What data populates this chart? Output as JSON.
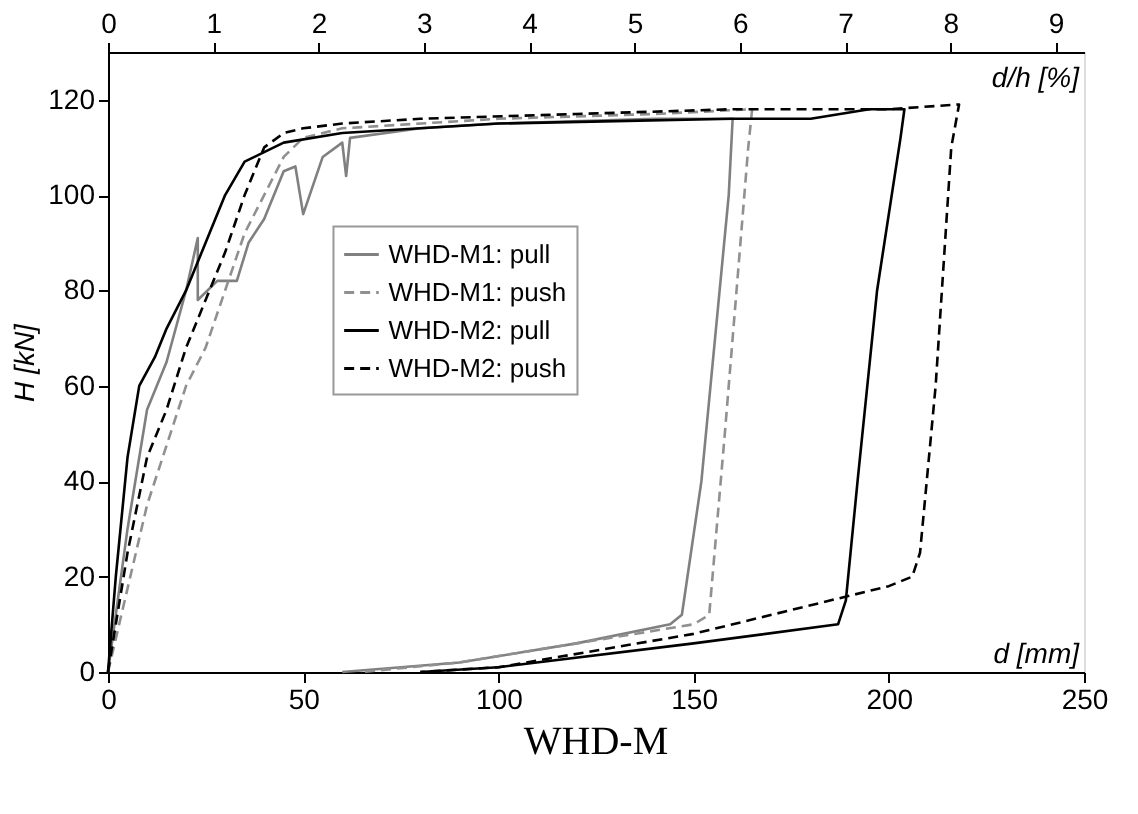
{
  "chart_data": {
    "type": "line",
    "title": "WHD-M",
    "ylabel": "H [kN]",
    "xlabel": "d [mm]",
    "x2label": "d/h [%]",
    "xlim": [
      0,
      250
    ],
    "xticks": [
      0,
      50,
      100,
      150,
      200,
      250
    ],
    "ylim": [
      0,
      130
    ],
    "yticks": [
      0,
      20,
      40,
      60,
      80,
      100,
      120
    ],
    "x2lim": [
      0,
      9.27
    ],
    "x2ticks": [
      0,
      1,
      2,
      3,
      4,
      5,
      6,
      7,
      8,
      9
    ],
    "grid": false,
    "legend": "center left",
    "marker": "none",
    "series": [
      {
        "name": "WHD-M1: pull",
        "color": "#808080",
        "line_style": "solid",
        "x": [
          0,
          5,
          10,
          15,
          20,
          23,
          23,
          28,
          33,
          36,
          40,
          45,
          48,
          50,
          55,
          60,
          61,
          62,
          80,
          100,
          140,
          160,
          159,
          152,
          147,
          144,
          120,
          90,
          60
        ],
        "values": [
          0,
          30,
          55,
          65,
          80,
          91,
          78,
          82,
          82,
          90,
          95,
          105,
          106,
          96,
          108,
          111,
          104,
          112,
          114,
          115,
          116,
          116,
          100,
          40,
          12,
          10,
          6,
          2,
          0
        ]
      },
      {
        "name": "WHD-M1: push",
        "color": "#909090",
        "line_style": "dashed",
        "x": [
          0,
          10,
          20,
          25,
          30,
          35,
          40,
          45,
          50,
          60,
          100,
          140,
          165,
          164,
          158,
          154,
          150,
          120,
          90,
          65
        ],
        "values": [
          0,
          35,
          60,
          68,
          80,
          92,
          100,
          108,
          112,
          114,
          116,
          117,
          118,
          110,
          50,
          12,
          10,
          6,
          2,
          0
        ]
      },
      {
        "name": "WHD-M2: pull",
        "color": "#000000",
        "line_style": "solid",
        "x": [
          0,
          2,
          5,
          8,
          12,
          15,
          20,
          25,
          30,
          35,
          40,
          45,
          60,
          80,
          100,
          130,
          160,
          180,
          195,
          204,
          203,
          197,
          192,
          189,
          187,
          150,
          100,
          80
        ],
        "values": [
          0,
          20,
          45,
          60,
          66,
          72,
          80,
          90,
          100,
          107,
          109,
          111,
          113,
          114,
          115,
          115.5,
          116,
          116,
          118,
          118,
          112,
          80,
          40,
          15,
          10,
          6,
          1,
          0
        ]
      },
      {
        "name": "WHD-M2: push",
        "color": "#000000",
        "line_style": "dashed",
        "x": [
          0,
          5,
          10,
          15,
          20,
          25,
          30,
          35,
          40,
          45,
          50,
          60,
          80,
          120,
          160,
          200,
          218,
          216,
          212,
          208,
          206,
          200,
          150,
          100,
          80
        ],
        "values": [
          0,
          25,
          45,
          55,
          68,
          78,
          88,
          100,
          110,
          113,
          114,
          115,
          116,
          117,
          118,
          118,
          119,
          110,
          60,
          25,
          20,
          18,
          8,
          1,
          0
        ]
      }
    ]
  }
}
